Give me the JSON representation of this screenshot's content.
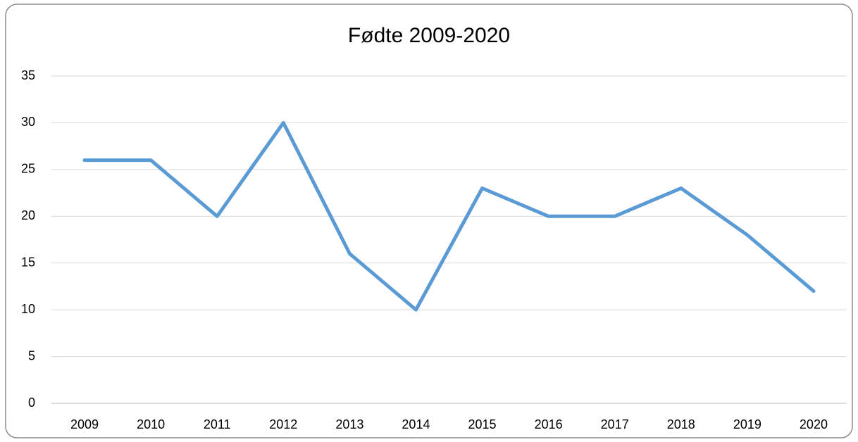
{
  "chart_data": {
    "type": "line",
    "title": "Fødte 2009-2020",
    "categories": [
      "2009",
      "2010",
      "2011",
      "2012",
      "2013",
      "2014",
      "2015",
      "2016",
      "2017",
      "2018",
      "2019",
      "2020"
    ],
    "values": [
      26,
      26,
      20,
      30,
      16,
      10,
      23,
      20,
      20,
      23,
      18,
      12
    ],
    "color": "#5b9bd5",
    "ylim": [
      0,
      35
    ],
    "yticks": [
      0,
      5,
      10,
      15,
      20,
      25,
      30,
      35
    ],
    "grid": true
  }
}
